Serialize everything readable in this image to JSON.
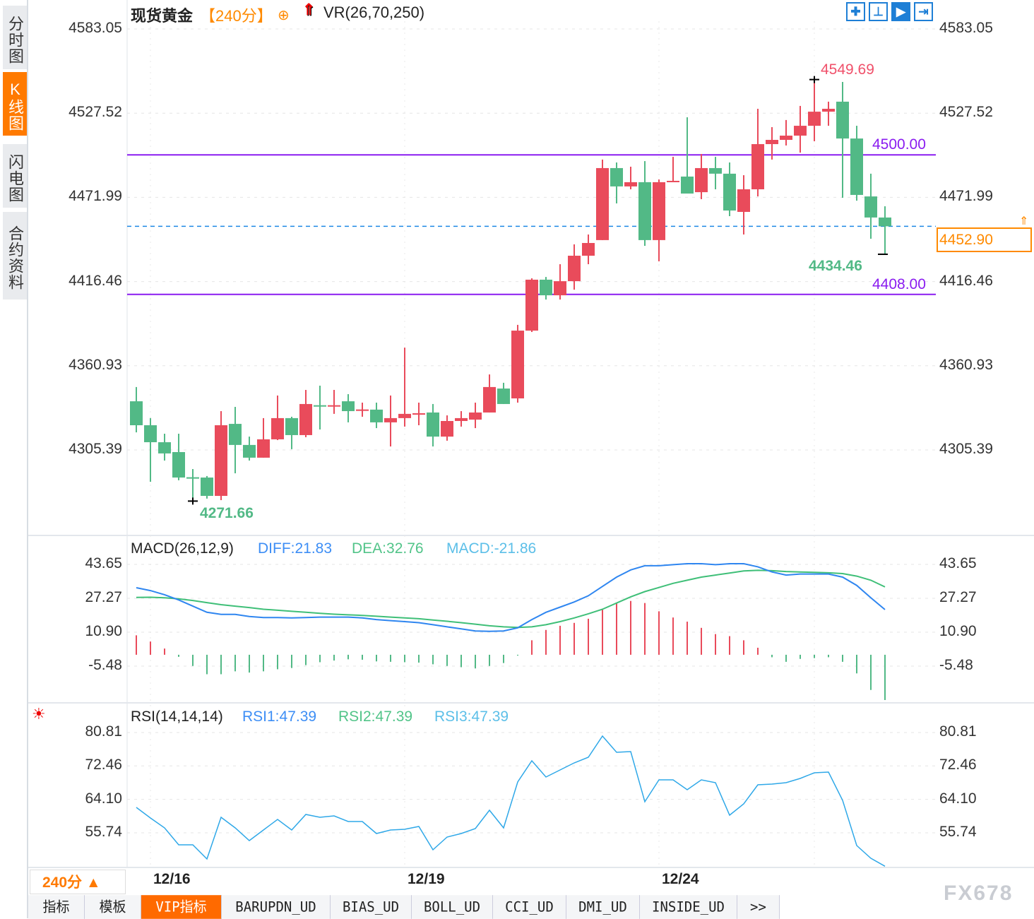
{
  "sidebar": {
    "tabs": [
      {
        "label": "分时图"
      },
      {
        "label": "K线图",
        "active": true
      },
      {
        "label": "闪电图"
      },
      {
        "label": "合约资料"
      }
    ]
  },
  "header": {
    "symbol": "现货黄金",
    "period": "【240分】",
    "indicator": "VR(26,70,250)"
  },
  "toolbar": {
    "icons": [
      "crosshair-icon",
      "zoom-fit-icon",
      "play-icon",
      "exit-icon"
    ]
  },
  "colors": {
    "up": "#e94b5b",
    "down": "#52b986",
    "line": "#8a1cf0",
    "current": "#1e88e5",
    "accent": "#ff7a00"
  },
  "price": {
    "ticks": [
      "4583.05",
      "4527.52",
      "4471.99",
      "4416.46",
      "4360.93",
      "4305.39"
    ],
    "tick_values": [
      4583.05,
      4527.52,
      4471.99,
      4416.46,
      4360.93,
      4305.39
    ],
    "current": "4452.90",
    "current_value": 4452.9,
    "high_label": "4549.69",
    "low_label": "4434.46",
    "prior_low_label": "4271.66",
    "hlines": [
      {
        "label": "4500.00",
        "value": 4500.0
      },
      {
        "label": "4408.00",
        "value": 4408.0
      }
    ]
  },
  "chart_data": {
    "type": "candlestick",
    "dates": [
      "12/16",
      "12/19",
      "12/24"
    ],
    "date_index": [
      1,
      19,
      37
    ],
    "ohlc": [
      [
        4337.5,
        4346.9,
        4317.0,
        4321.7
      ],
      [
        4321.7,
        4326.4,
        4284.4,
        4310.5
      ],
      [
        4310.5,
        4316.1,
        4298.4,
        4303.1
      ],
      [
        4304.0,
        4316.1,
        4285.4,
        4287.2
      ],
      [
        4287.4,
        4292.8,
        4271.66,
        4287.2
      ],
      [
        4287.2,
        4288.2,
        4273.3,
        4275.1
      ],
      [
        4275.1,
        4331.0,
        4272.3,
        4321.7
      ],
      [
        4322.6,
        4333.8,
        4290.0,
        4308.7
      ],
      [
        4308.7,
        4314.2,
        4298.4,
        4300.3
      ],
      [
        4300.3,
        4326.4,
        4300.3,
        4312.4
      ],
      [
        4312.4,
        4341.3,
        4311.9,
        4326.4
      ],
      [
        4326.4,
        4327.3,
        4305.9,
        4315.2
      ],
      [
        4315.2,
        4345.0,
        4313.8,
        4335.7
      ],
      [
        4334.9,
        4347.8,
        4318.9,
        4334.5
      ],
      [
        4334.5,
        4345.0,
        4329.2,
        4334.9
      ],
      [
        4337.5,
        4342.2,
        4323.6,
        4331.0
      ],
      [
        4331.8,
        4336.6,
        4327.3,
        4332.1
      ],
      [
        4332.0,
        4336.6,
        4319.8,
        4323.6
      ],
      [
        4323.6,
        4341.3,
        4307.7,
        4326.4
      ],
      [
        4326.4,
        4372.9,
        4320.8,
        4329.2
      ],
      [
        4329.4,
        4336.6,
        4321.7,
        4329.6
      ],
      [
        4330.1,
        4335.7,
        4307.7,
        4314.2
      ],
      [
        4314.2,
        4328.2,
        4311.5,
        4324.5
      ],
      [
        4324.5,
        4331.0,
        4320.8,
        4326.4
      ],
      [
        4325.4,
        4336.6,
        4319.8,
        4330.1
      ],
      [
        4330.1,
        4355.2,
        4330.1,
        4346.9
      ],
      [
        4345.9,
        4349.7,
        4335.7,
        4335.7
      ],
      [
        4339.4,
        4387.9,
        4336.6,
        4384.1
      ],
      [
        4384.1,
        4418.6,
        4383.2,
        4417.7
      ],
      [
        4417.7,
        4419.5,
        4404.6,
        4407.4
      ],
      [
        4407.4,
        4427.9,
        4404.6,
        4416.7
      ],
      [
        4416.7,
        4441.0,
        4411.1,
        4433.5
      ],
      [
        4433.5,
        4447.5,
        4427.9,
        4441.9
      ],
      [
        4443.8,
        4496.9,
        4443.8,
        4491.3
      ],
      [
        4491.3,
        4495.0,
        4468.0,
        4479.2
      ],
      [
        4479.2,
        4492.2,
        4477.3,
        4482.0
      ],
      [
        4482.0,
        4495.9,
        4440.0,
        4443.8
      ],
      [
        4443.8,
        4483.8,
        4429.8,
        4482.0
      ],
      [
        4482.4,
        4498.7,
        4482.4,
        4482.9
      ],
      [
        4485.7,
        4524.8,
        4474.5,
        4474.5
      ],
      [
        4475.4,
        4500.6,
        4470.8,
        4491.3
      ],
      [
        4491.3,
        4498.7,
        4477.3,
        4487.6
      ],
      [
        4487.6,
        4495.0,
        4459.6,
        4463.3
      ],
      [
        4462.4,
        4486.6,
        4447.5,
        4477.3
      ],
      [
        4477.3,
        4530.4,
        4472.6,
        4507.1
      ],
      [
        4507.1,
        4518.3,
        4496.9,
        4509.9
      ],
      [
        4509.9,
        4523.0,
        4506.2,
        4512.7
      ],
      [
        4512.7,
        4532.3,
        4501.5,
        4519.2
      ],
      [
        4519.2,
        4549.69,
        4509.0,
        4528.5
      ],
      [
        4528.5,
        4535.1,
        4519.2,
        4530.4
      ],
      [
        4535.1,
        4548.1,
        4471.7,
        4510.8
      ],
      [
        4510.8,
        4519.2,
        4469.8,
        4473.6
      ],
      [
        4472.6,
        4487.6,
        4444.7,
        4458.7
      ],
      [
        4458.7,
        4466.1,
        4434.46,
        4452.9
      ]
    ],
    "macd": {
      "title": "MACD(26,12,9)",
      "diff_label": "DIFF:21.83",
      "dea_label": "DEA:32.76",
      "macd_label": "MACD:-21.86",
      "ticks": [
        "43.65",
        "27.27",
        "10.90",
        "-5.48"
      ],
      "tick_values": [
        43.65,
        27.27,
        10.9,
        -5.48
      ],
      "diff": [
        32.4,
        31.0,
        29.0,
        26.5,
        23.5,
        20.5,
        19.5,
        19.5,
        18.5,
        18.0,
        18.0,
        17.8,
        18.0,
        18.2,
        18.2,
        18.2,
        17.8,
        17.0,
        16.5,
        16.0,
        15.5,
        14.5,
        13.5,
        12.5,
        11.5,
        11.3,
        11.5,
        13.0,
        17.0,
        20.5,
        23.0,
        25.5,
        28.5,
        33.0,
        37.5,
        41.0,
        43.0,
        43.0,
        43.5,
        44.0,
        44.0,
        43.5,
        44.0,
        44.0,
        42.5,
        40.0,
        38.5,
        39.0,
        39.0,
        39.0,
        37.5,
        33.5,
        27.5,
        21.83
      ],
      "dea": [
        27.7,
        27.8,
        27.5,
        27.0,
        26.2,
        25.2,
        24.2,
        23.5,
        22.8,
        22.0,
        21.5,
        21.0,
        20.5,
        20.0,
        19.6,
        19.3,
        19.0,
        18.6,
        18.2,
        17.8,
        17.4,
        16.8,
        16.2,
        15.5,
        14.8,
        14.0,
        13.5,
        13.2,
        13.5,
        14.5,
        16.0,
        17.8,
        19.8,
        22.0,
        25.0,
        28.0,
        30.5,
        32.5,
        34.5,
        36.0,
        37.5,
        38.5,
        39.5,
        40.5,
        40.8,
        40.6,
        40.2,
        40.0,
        39.8,
        39.6,
        39.2,
        38.0,
        36.0,
        32.76
      ]
    },
    "rsi": {
      "title": "RSI(14,14,14)",
      "rsi1_label": "RSI1:47.39",
      "rsi2_label": "RSI2:47.39",
      "rsi3_label": "RSI3:47.39",
      "ticks": [
        "80.81",
        "72.46",
        "64.10",
        "55.74"
      ],
      "tick_values": [
        80.81,
        72.46,
        64.1,
        55.74
      ],
      "values": [
        62.1,
        59.45,
        56.98,
        52.74,
        52.74,
        49.21,
        59.62,
        56.98,
        53.8,
        56.45,
        59.09,
        56.45,
        60.33,
        59.62,
        59.98,
        58.56,
        58.56,
        55.56,
        56.45,
        56.62,
        57.33,
        51.5,
        54.68,
        55.56,
        56.8,
        61.39,
        56.98,
        68.45,
        73.75,
        69.69,
        71.45,
        73.22,
        74.63,
        79.93,
        75.87,
        76.04,
        63.51,
        68.98,
        68.98,
        66.51,
        68.98,
        68.27,
        60.15,
        62.98,
        67.75,
        67.92,
        68.27,
        69.33,
        70.75,
        70.92,
        63.86,
        52.56,
        49.38,
        47.39
      ]
    }
  },
  "period_button": {
    "label": "240分",
    "arrow": "▲"
  },
  "bottom_tabs": [
    {
      "label": "指标"
    },
    {
      "label": "模板"
    },
    {
      "label": "VIP指标",
      "active": true
    },
    {
      "label": "BARUPDN_UD"
    },
    {
      "label": "BIAS_UD"
    },
    {
      "label": "BOLL_UD"
    },
    {
      "label": "CCI_UD"
    },
    {
      "label": "DMI_UD"
    },
    {
      "label": "INSIDE_UD"
    },
    {
      "label": ">>"
    }
  ],
  "watermark": "FX678"
}
